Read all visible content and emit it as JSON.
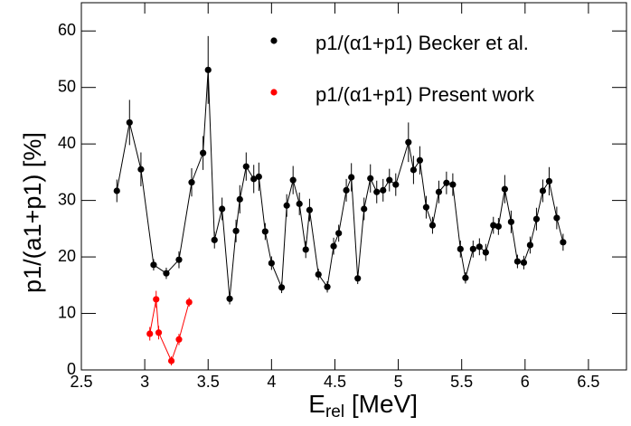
{
  "chart_data": {
    "type": "scatter",
    "x_label": {
      "main": "E",
      "sub": "rel",
      "rest": " [MeV]"
    },
    "y_label": "p1/(a1+p1) [%]",
    "xlim": [
      2.5,
      6.8
    ],
    "ylim": [
      0,
      65
    ],
    "xticks": [
      {
        "value": 2.5,
        "label": "2.5"
      },
      3,
      {
        "value": 3.5,
        "label": "3.5"
      },
      4,
      {
        "value": 4.5,
        "label": "4.5"
      },
      5,
      {
        "value": 5.5,
        "label": "5.5"
      },
      6,
      {
        "value": 6.5,
        "label": "6.5"
      }
    ],
    "yticks": [
      0,
      10,
      20,
      30,
      40,
      50,
      60
    ],
    "grid": false,
    "legend": "top-right",
    "series": [
      {
        "name": "p1/(α1+p1) Becker et al.",
        "color": "#000000",
        "x": [
          2.78,
          2.88,
          2.97,
          3.07,
          3.17,
          3.27,
          3.37,
          3.46,
          3.5,
          3.55,
          3.61,
          3.67,
          3.72,
          3.75,
          3.8,
          3.86,
          3.9,
          3.95,
          4.0,
          4.08,
          4.12,
          4.17,
          4.22,
          4.27,
          4.3,
          4.37,
          4.44,
          4.49,
          4.53,
          4.59,
          4.63,
          4.68,
          4.73,
          4.78,
          4.83,
          4.88,
          4.93,
          4.98,
          5.08,
          5.12,
          5.17,
          5.22,
          5.27,
          5.32,
          5.38,
          5.43,
          5.49,
          5.53,
          5.59,
          5.64,
          5.69,
          5.75,
          5.79,
          5.84,
          5.89,
          5.94,
          5.99,
          6.04,
          6.09,
          6.14,
          6.19,
          6.25,
          6.3
        ],
        "y": [
          31.7,
          43.8,
          35.5,
          18.6,
          17.1,
          19.5,
          33.2,
          38.4,
          53.1,
          23.0,
          28.5,
          12.6,
          24.6,
          30.2,
          36.0,
          33.8,
          34.2,
          24.5,
          18.9,
          14.6,
          29.1,
          33.6,
          29.4,
          21.3,
          28.3,
          16.9,
          14.7,
          21.9,
          24.2,
          31.8,
          34.1,
          16.2,
          28.5,
          33.9,
          31.5,
          31.8,
          33.6,
          32.8,
          40.3,
          35.4,
          37.1,
          28.8,
          25.6,
          31.5,
          33.1,
          32.8,
          21.4,
          16.3,
          21.4,
          21.8,
          20.8,
          25.6,
          25.4,
          32.0,
          26.2,
          19.2,
          19.0,
          22.1,
          26.7,
          31.7,
          33.4,
          26.9,
          22.6
        ],
        "errors": [
          2,
          4,
          3,
          1,
          1,
          1.5,
          2.5,
          3,
          6,
          1.5,
          2,
          1,
          2,
          2.5,
          2.5,
          2.5,
          2.5,
          1.5,
          1.2,
          1,
          2,
          2.5,
          2,
          1.5,
          2,
          1,
          1,
          1.5,
          1.5,
          2,
          2.5,
          1,
          2,
          2.5,
          2,
          2,
          2,
          2,
          3.5,
          2.5,
          2.5,
          2,
          1.5,
          2,
          2,
          2,
          1.5,
          1,
          1.5,
          1.5,
          1.5,
          1.5,
          1.5,
          2.5,
          2,
          1.2,
          1.2,
          1.5,
          2,
          2,
          2.5,
          2,
          1.5
        ]
      },
      {
        "name": "p1/(α1+p1) Present work",
        "color": "#ff0000",
        "x": [
          3.04,
          3.09,
          3.11,
          3.21,
          3.27,
          3.35
        ],
        "y": [
          6.4,
          12.5,
          6.6,
          1.6,
          5.4,
          12.0
        ],
        "errors": [
          1.2,
          1.5,
          1.2,
          0.8,
          1.0,
          0.8
        ]
      }
    ]
  }
}
